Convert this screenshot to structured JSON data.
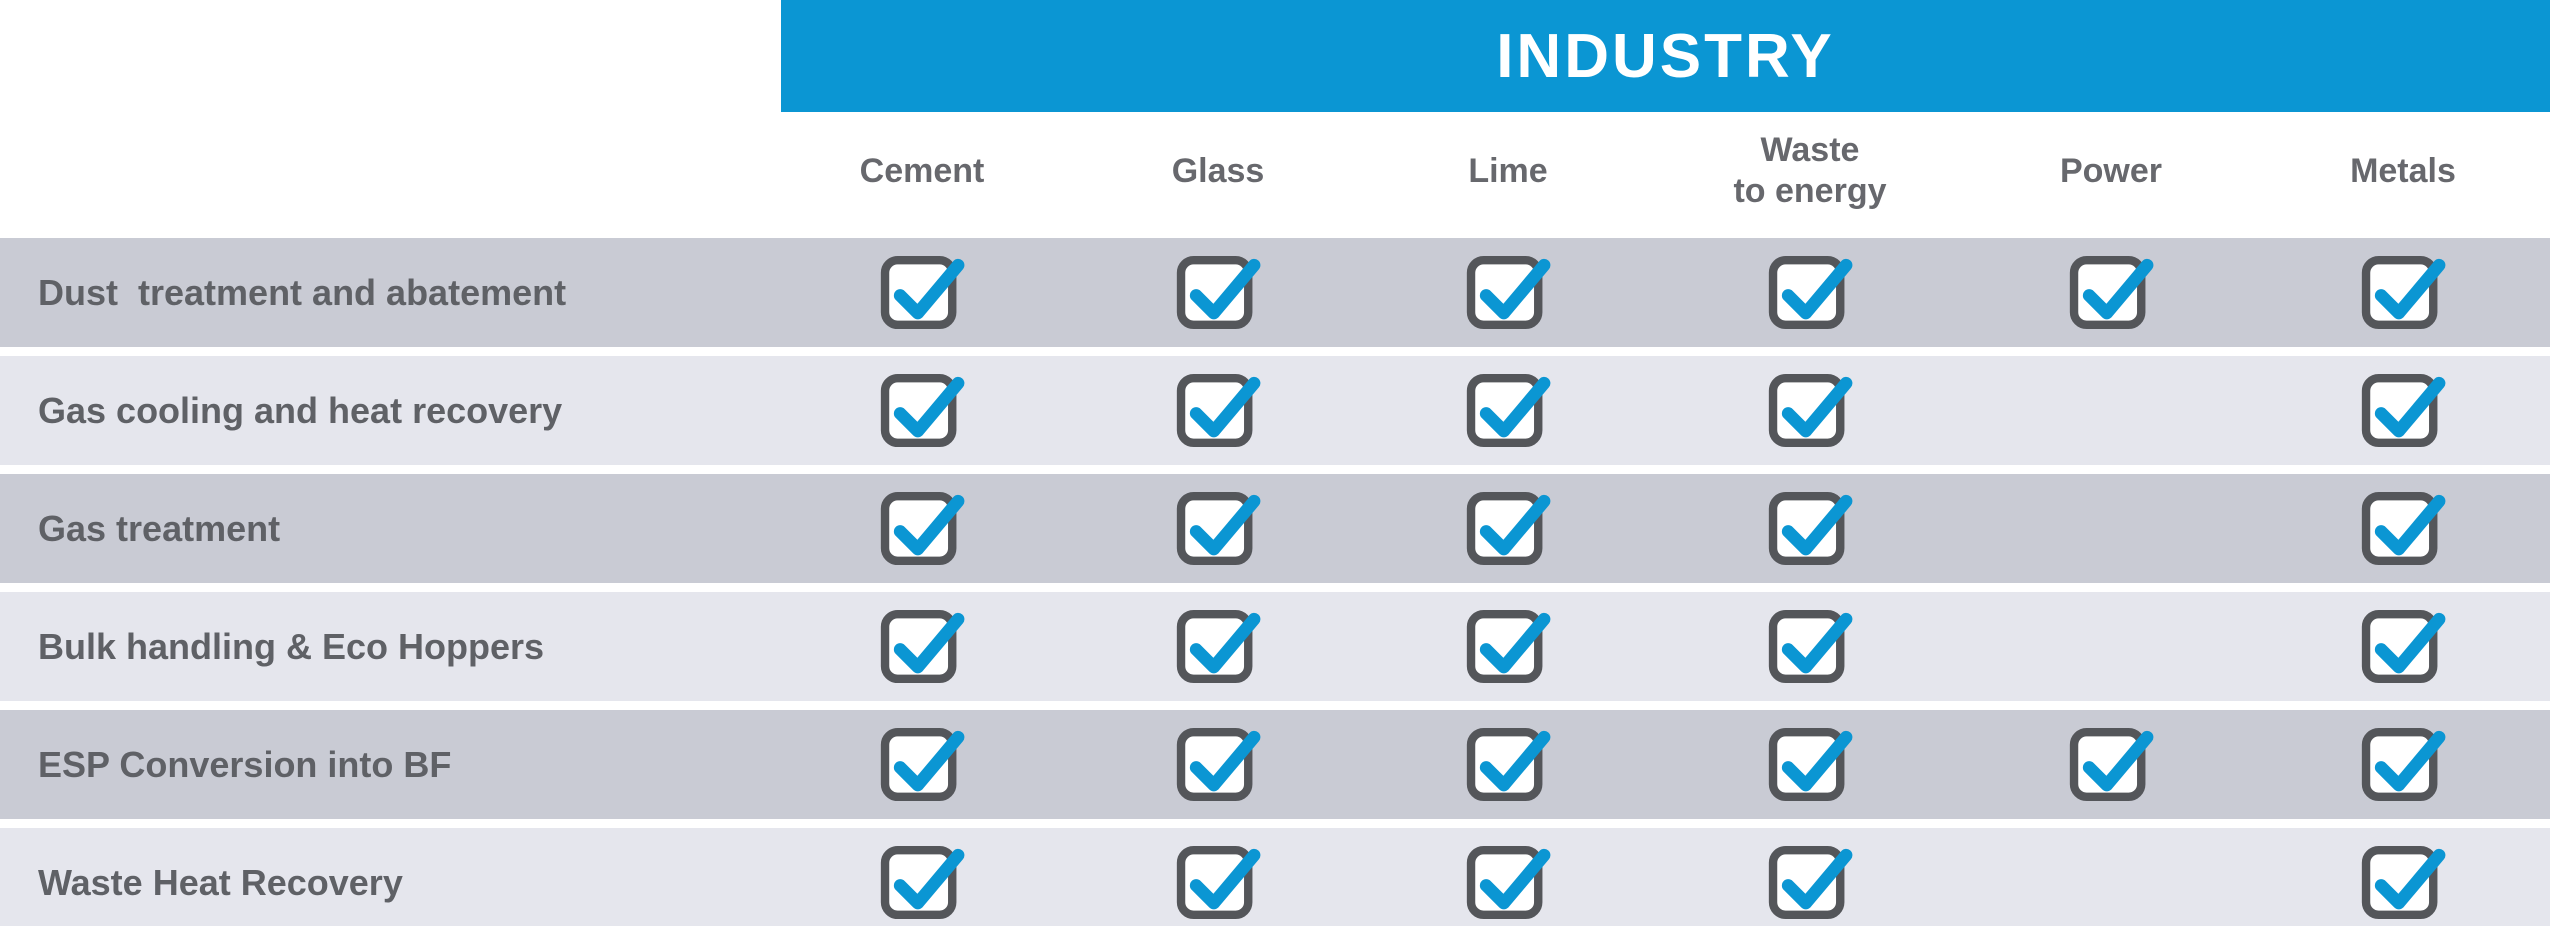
{
  "chart_data": {
    "type": "table",
    "title": "INDUSTRY",
    "columns": [
      "Cement",
      "Glass",
      "Lime",
      "Waste\nto energy",
      "Power",
      "Metals"
    ],
    "rows": [
      {
        "label": "Dust  treatment and abatement",
        "checks": [
          true,
          true,
          true,
          true,
          true,
          true
        ]
      },
      {
        "label": "Gas cooling and heat recovery",
        "checks": [
          true,
          true,
          true,
          true,
          false,
          true
        ]
      },
      {
        "label": "Gas treatment",
        "checks": [
          true,
          true,
          true,
          true,
          false,
          true
        ]
      },
      {
        "label": "Bulk handling & Eco Hoppers",
        "checks": [
          true,
          true,
          true,
          true,
          false,
          true
        ]
      },
      {
        "label": "ESP Conversion into BF",
        "checks": [
          true,
          true,
          true,
          true,
          true,
          true
        ]
      },
      {
        "label": "Waste Heat Recovery",
        "checks": [
          true,
          true,
          true,
          true,
          false,
          true
        ]
      }
    ]
  },
  "colors": {
    "header_blue": "#0b96d3",
    "check_blue": "#0b96d3",
    "row_band_dark": "#c9cbd4",
    "row_band_light": "#e5e6ed",
    "heading_text_gray": "#67686d",
    "row_text_gray": "#5f6166",
    "checkbox_border_gray": "#54565a",
    "checkbox_fill": "#ffffff",
    "background": "#ffffff"
  }
}
